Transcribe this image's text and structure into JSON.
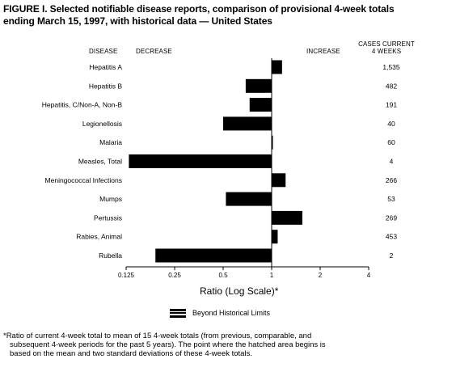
{
  "title_line1": "FIGURE I. Selected notifiable disease reports, comparison of provisional 4-week totals",
  "title_line2": "ending March 15, 1997, with historical data — United States",
  "headers": {
    "disease": "DISEASE",
    "decrease": "DECREASE",
    "increase": "INCREASE",
    "cases_line1": "CASES CURRENT",
    "cases_line2": "4 WEEKS"
  },
  "legend_label": "Beyond Historical Limits",
  "footnote_line1": "*Ratio of current 4-week total to mean of 15 4-week totals (from previous, comparable, and",
  "footnote_line2": "subsequent 4-week periods for the past 5 years). The point where the hatched area begins is",
  "footnote_line3": "based on the mean and two standard deviations of these 4-week totals.",
  "chart_data": {
    "type": "bar",
    "orientation": "horizontal",
    "scale": "log2",
    "xlabel": "Ratio (Log Scale)*",
    "xlim": [
      0.125,
      4
    ],
    "xticks": [
      "0.125",
      "0.25",
      "0.5",
      "1",
      "2",
      "4"
    ],
    "reference_line": 1,
    "bar_color": "#000000",
    "categories": [
      "Hepatitis A",
      "Hepatitis B",
      "Hepatitis, C/Non-A, Non-B",
      "Legionellosis",
      "Malaria",
      "Measles, Total",
      "Meningococcal Infections",
      "Mumps",
      "Pertussis",
      "Rabies, Animal",
      "Rubella"
    ],
    "values": [
      1.16,
      0.69,
      0.73,
      0.5,
      1.01,
      0.13,
      1.22,
      0.52,
      1.55,
      1.09,
      0.19
    ],
    "cases": [
      "1,535",
      "482",
      "191",
      "40",
      "60",
      "4",
      "266",
      "53",
      "269",
      "453",
      "2"
    ]
  }
}
